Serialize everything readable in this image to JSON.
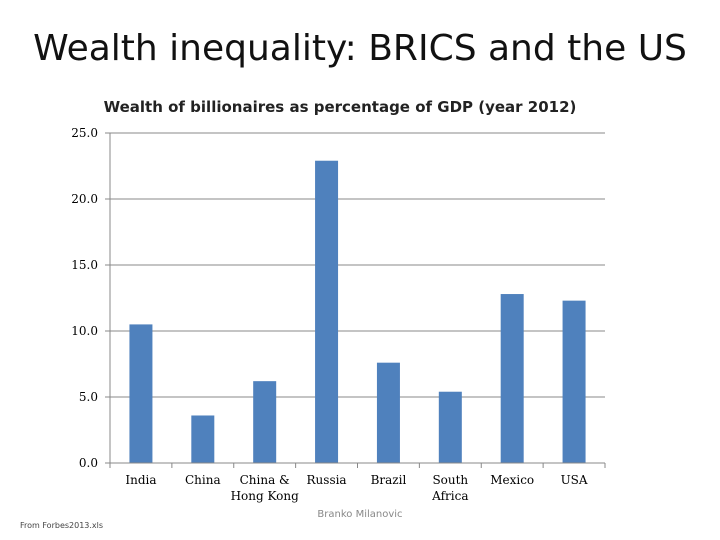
{
  "slide": {
    "title": "Wealth inequality: BRICS and the US",
    "source_note": "From Forbes2013.xls",
    "author_note": "Branko Milanovic"
  },
  "colors": {
    "bar": "#4F81BD",
    "grid": "#888888",
    "axis": "#888888"
  },
  "chart_data": {
    "type": "bar",
    "title": "Wealth of billionaires as percentage of GDP (year 2012)",
    "xlabel": "",
    "ylabel": "",
    "categories": [
      "India",
      "China",
      "China & Hong Kong",
      "Russia",
      "Brazil",
      "South Africa",
      "Mexico",
      "USA"
    ],
    "category_label_lines": [
      [
        "India"
      ],
      [
        "China"
      ],
      [
        "China &",
        "Hong Kong"
      ],
      [
        "Russia"
      ],
      [
        "Brazil"
      ],
      [
        "South",
        "Africa"
      ],
      [
        "Mexico"
      ],
      [
        "USA"
      ]
    ],
    "values": [
      10.5,
      3.6,
      6.2,
      22.9,
      7.6,
      5.4,
      12.8,
      12.3
    ],
    "ylim": [
      0,
      25
    ],
    "yticks": [
      "0.0",
      "5.0",
      "10.0",
      "15.0",
      "20.0",
      "25.0"
    ],
    "grid": true,
    "legend": "none"
  }
}
